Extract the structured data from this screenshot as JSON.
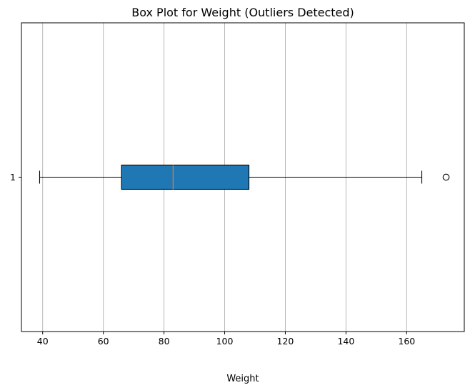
{
  "chart_data": {
    "type": "boxplot",
    "orientation": "horizontal",
    "title": "Box Plot for Weight (Outliers Detected)",
    "xlabel": "Weight",
    "ylabel": "",
    "xlim": [
      33,
      179
    ],
    "xticks": [
      40,
      60,
      80,
      100,
      120,
      140,
      160
    ],
    "grid": "x-axis only",
    "categories": [
      "1"
    ],
    "boxes": [
      {
        "label": "1",
        "whisker_low": 39,
        "q1": 66,
        "median": 83,
        "q3": 108,
        "whisker_high": 165,
        "outliers": [
          173
        ]
      }
    ],
    "colors": {
      "box_fill": "#1f77b4",
      "median": "#ff7f0e",
      "grid": "#b0b0b0",
      "axes": "#000000",
      "outlier_fill": "none"
    }
  }
}
